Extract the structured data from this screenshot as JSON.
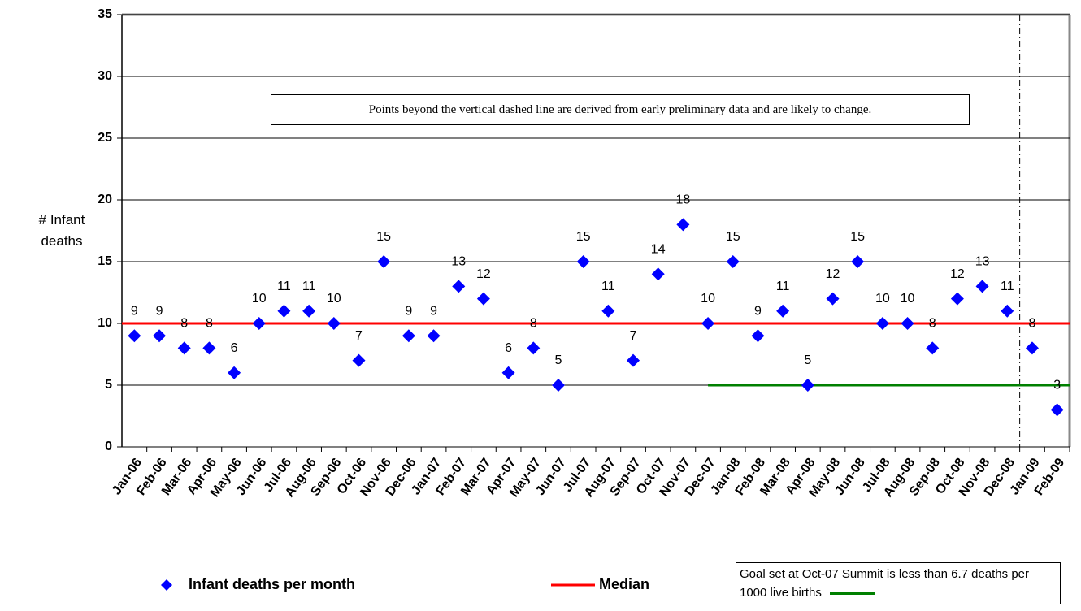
{
  "chart_data": {
    "type": "scatter",
    "ylabel": "# Infant deaths",
    "annotation": "Points beyond the vertical dashed line are derived from early preliminary data and are likely to change.",
    "categories": [
      "Jan-06",
      "Feb-06",
      "Mar-06",
      "Apr-06",
      "May-06",
      "Jun-06",
      "Jul-06",
      "Aug-06",
      "Sep-06",
      "Oct-06",
      "Nov-06",
      "Dec-06",
      "Jan-07",
      "Feb-07",
      "Mar-07",
      "Apr-07",
      "May-07",
      "Jun-07",
      "Jul-07",
      "Aug-07",
      "Sep-07",
      "Oct-07",
      "Nov-07",
      "Dec-07",
      "Jan-08",
      "Feb-08",
      "Mar-08",
      "Apr-08",
      "May-08",
      "Jun-08",
      "Jul-08",
      "Aug-08",
      "Sep-08",
      "Oct-08",
      "Nov-08",
      "Dec-08",
      "Jan-09",
      "Feb-09"
    ],
    "series": [
      {
        "name": "Infant deaths per month",
        "color": "#0000ff",
        "values": [
          9,
          9,
          8,
          8,
          6,
          10,
          11,
          11,
          10,
          7,
          15,
          9,
          9,
          13,
          12,
          6,
          8,
          5,
          15,
          11,
          7,
          14,
          18,
          10,
          15,
          9,
          11,
          5,
          12,
          15,
          10,
          10,
          8,
          12,
          13,
          11,
          8,
          3
        ]
      }
    ],
    "reference_lines": [
      {
        "name": "Median",
        "value": 10,
        "color": "#ff0000",
        "start": "Jan-06"
      },
      {
        "name": "Goal set at Oct-07 Summit is less than 6.7 deaths per 1000 live births",
        "value": 5,
        "color": "#008000",
        "start": "Dec-07"
      }
    ],
    "preliminary_from": "Jan-09",
    "ylim": [
      0,
      35
    ],
    "yticks": [
      0,
      5,
      10,
      15,
      20,
      25,
      30,
      35
    ],
    "grid": true
  }
}
